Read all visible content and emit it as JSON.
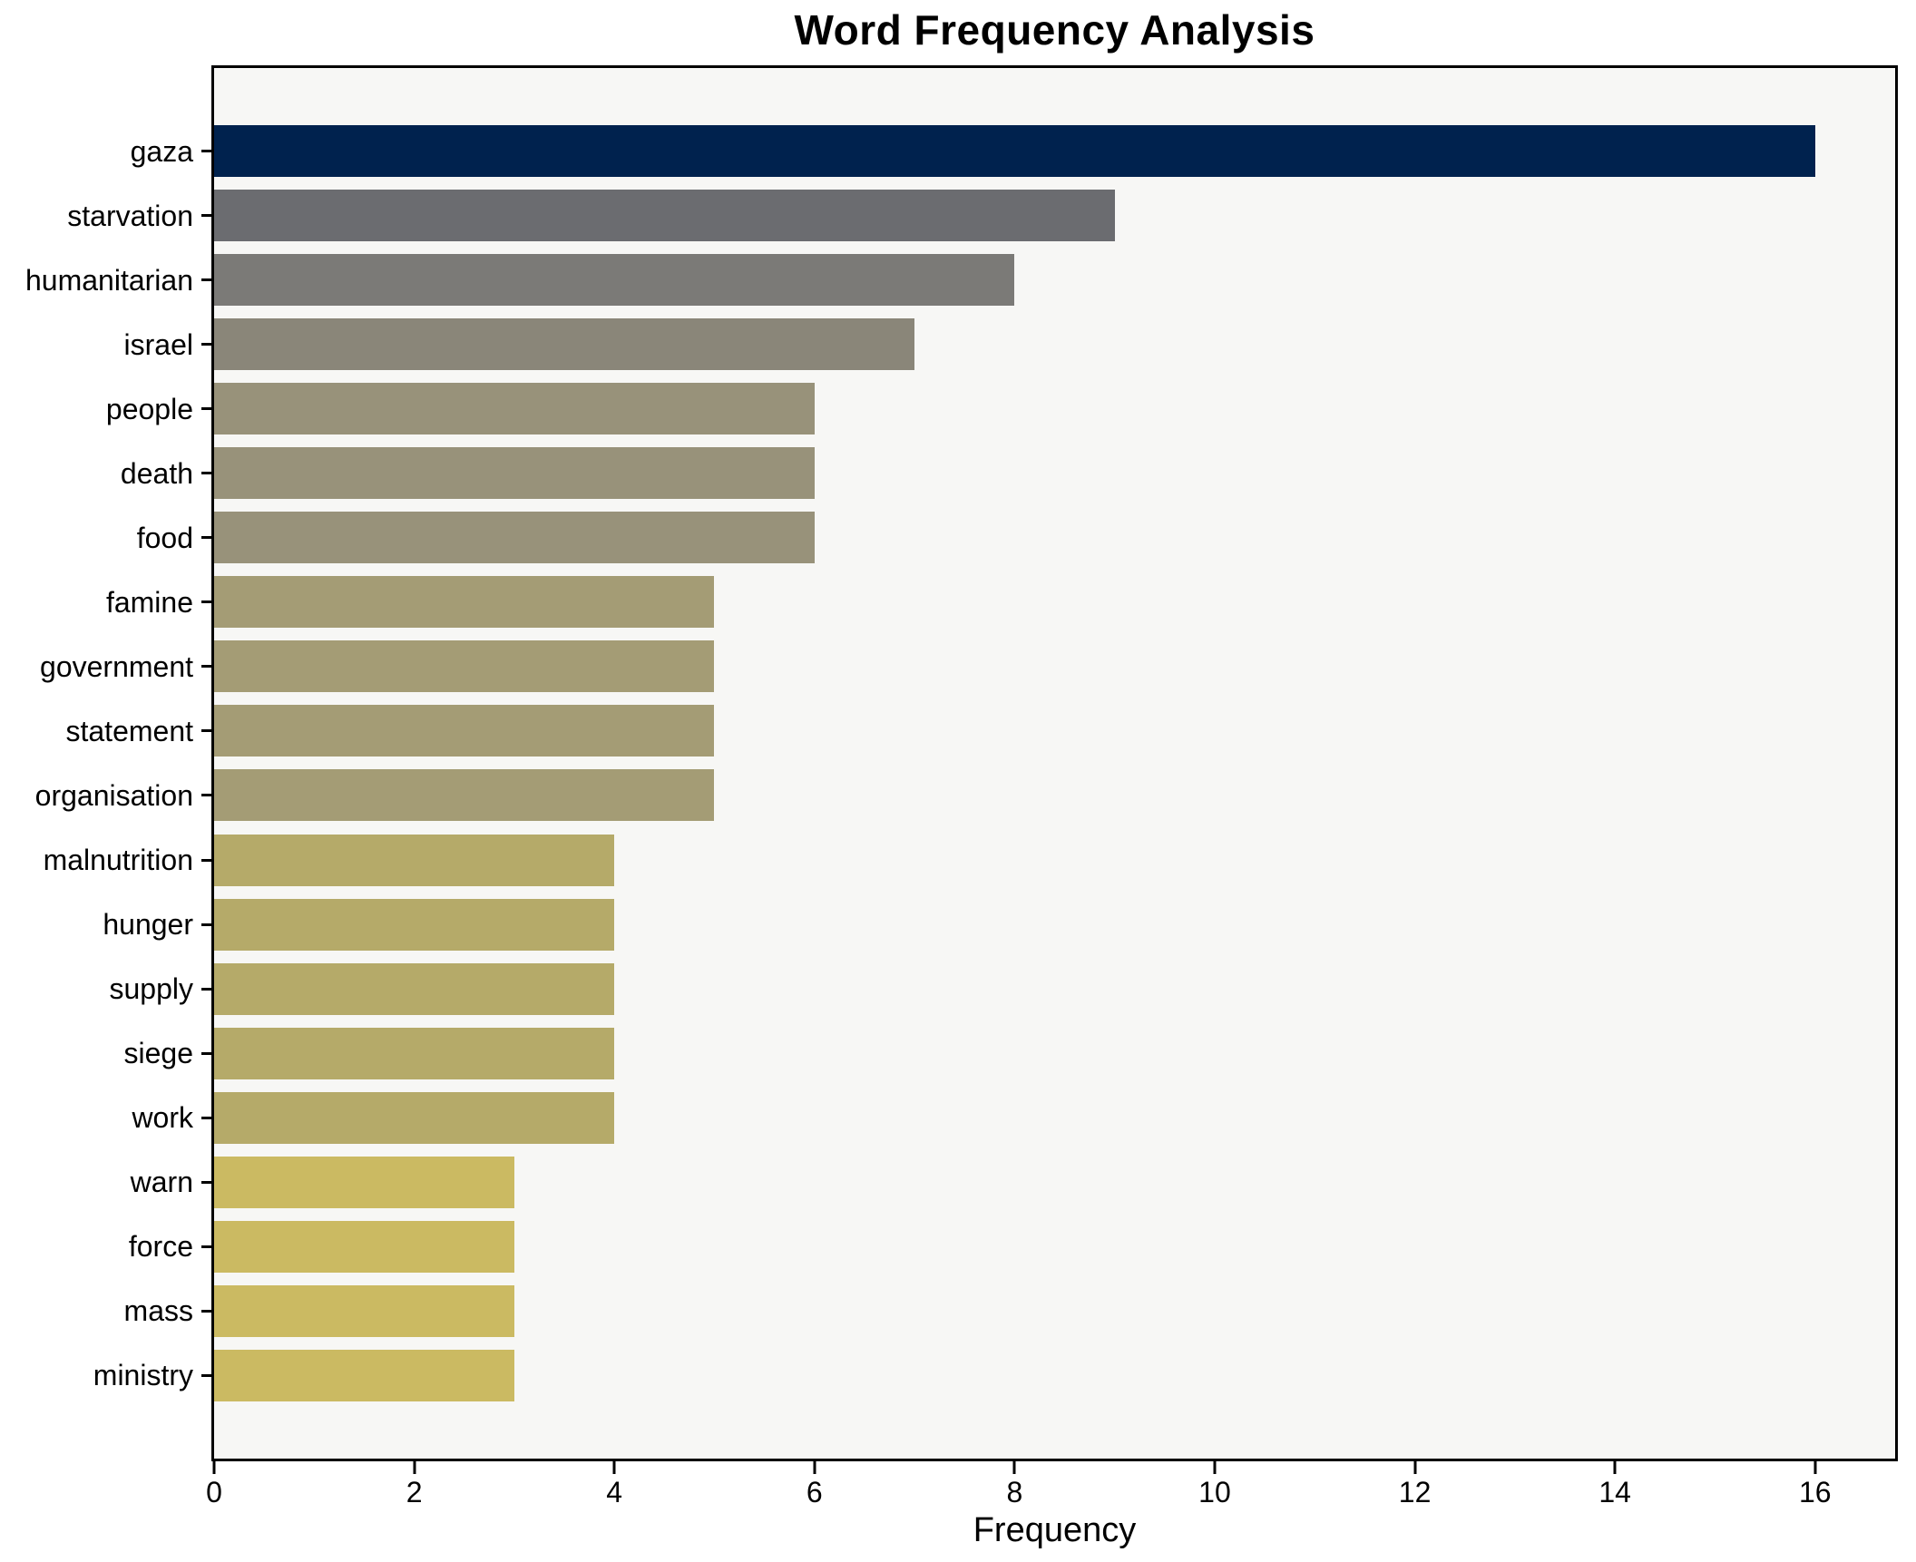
{
  "chart_data": {
    "type": "bar",
    "orientation": "horizontal",
    "title": "Word Frequency Analysis",
    "xlabel": "Frequency",
    "ylabel": "",
    "xlim": [
      0,
      16.8
    ],
    "xticks": [
      0,
      2,
      4,
      6,
      8,
      10,
      12,
      14,
      16
    ],
    "grid": false,
    "legend_position": "none",
    "plot_background": "#f7f7f5",
    "spine_color": "#000000",
    "categories": [
      "gaza",
      "starvation",
      "humanitarian",
      "israel",
      "people",
      "death",
      "food",
      "famine",
      "government",
      "statement",
      "organisation",
      "malnutrition",
      "hunger",
      "supply",
      "siege",
      "work",
      "warn",
      "force",
      "mass",
      "ministry"
    ],
    "values": [
      16,
      9,
      8,
      7,
      6,
      6,
      6,
      5,
      5,
      5,
      5,
      4,
      4,
      4,
      4,
      4,
      3,
      3,
      3,
      3
    ],
    "bar_colors": [
      "#00224e",
      "#6b6c70",
      "#7b7a77",
      "#8a8679",
      "#98927a",
      "#98927a",
      "#98927a",
      "#a49c75",
      "#a49c75",
      "#a49c75",
      "#a49c75",
      "#b5aa69",
      "#b5aa69",
      "#b5aa69",
      "#b5aa69",
      "#b5aa69",
      "#cbba62",
      "#cbba62",
      "#cbba62",
      "#cbba62"
    ]
  }
}
